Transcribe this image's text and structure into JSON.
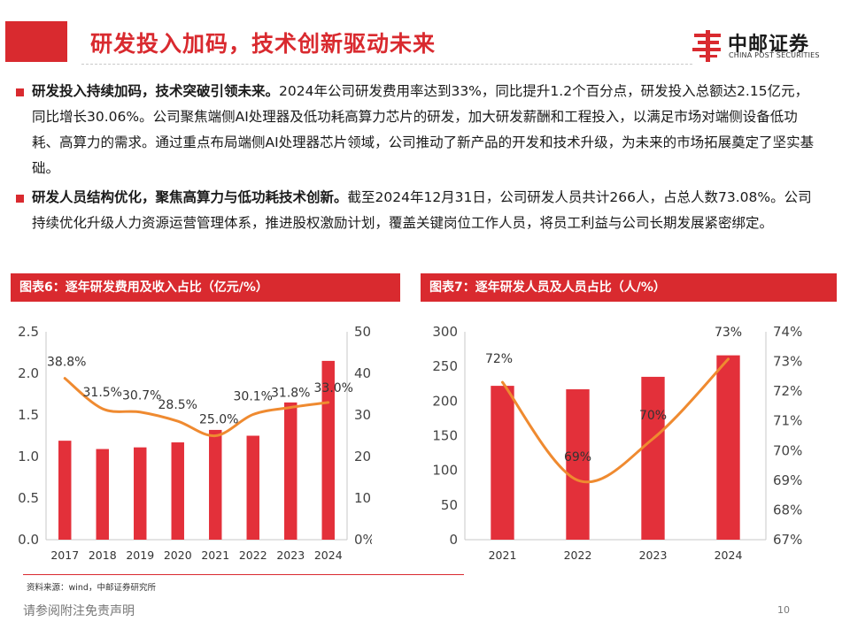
{
  "header": {
    "title": "研发投入加码，技术创新驱动未来",
    "brand_name": "中邮证券",
    "brand_en": "CHINA POST SECURITIES",
    "accent_color": "#d92a2f"
  },
  "bullets": [
    {
      "bold": "研发投入持续加码，技术突破引领未来。",
      "text": "2024年公司研发费用率达到33%，同比提升1.2个百分点，研发投入总额达2.15亿元，同比增长30.06%。公司聚焦端侧AI处理器及低功耗高算力芯片的研发，加大研发薪酬和工程投入，以满足市场对端侧设备低功耗、高算力的需求。通过重点布局端侧AI处理器芯片领域，公司推动了新产品的开发和技术升级，为未来的市场拓展奠定了坚实基础。"
    },
    {
      "bold": "研发人员结构优化，聚焦高算力与低功耗技术创新。",
      "text": "截至2024年12月31日，公司研发人员共计266人，占总人数73.08%。公司持续优化升级人力资源运营管理体系，推进股权激励计划，覆盖关键岗位工作人员，将员工利益与公司长期发展紧密绑定。"
    }
  ],
  "chart_data": [
    {
      "panel_title": "图表6：逐年研发费用及收入占比（亿元/%）",
      "type": "bar",
      "categories": [
        "2017",
        "2018",
        "2019",
        "2020",
        "2021",
        "2022",
        "2023",
        "2024"
      ],
      "series": [
        {
          "type": "bar",
          "axis": "left",
          "values": [
            1.19,
            1.09,
            1.11,
            1.17,
            1.32,
            1.25,
            1.65,
            2.15
          ],
          "color": "#e3303a"
        },
        {
          "type": "line",
          "axis": "right",
          "values": [
            38.8,
            31.5,
            30.7,
            28.5,
            25.0,
            30.1,
            31.8,
            33.0
          ],
          "labels": [
            "38.8%",
            "31.5%",
            "30.7%",
            "28.5%",
            "25.0%",
            "30.1%",
            "31.8%",
            "33.0%"
          ],
          "color": "#ef8a30"
        }
      ],
      "ylim_left": [
        0,
        2.5
      ],
      "yticks_left": [
        "0.0",
        "0.5",
        "1.0",
        "1.5",
        "2.0",
        "2.5"
      ],
      "ylim_right": [
        0,
        50
      ],
      "yticks_right": [
        "0%",
        "10%",
        "20%",
        "30%",
        "40%",
        "50%"
      ],
      "grid": false,
      "legend": "none"
    },
    {
      "panel_title": "图表7：逐年研发人员及人员占比（人/%）",
      "type": "bar",
      "categories": [
        "2021",
        "2022",
        "2023",
        "2024"
      ],
      "series": [
        {
          "type": "bar",
          "axis": "left",
          "values": [
            222,
            217,
            235,
            266
          ],
          "color": "#e3303a"
        },
        {
          "type": "line",
          "axis": "right",
          "values": [
            72.3,
            69.0,
            70.4,
            73.08
          ],
          "labels": [
            "72%",
            "69%",
            "70%",
            "73%"
          ],
          "color": "#ef8a30"
        }
      ],
      "ylim_left": [
        0,
        300
      ],
      "yticks_left": [
        "0",
        "50",
        "100",
        "150",
        "200",
        "250",
        "300"
      ],
      "ylim_right": [
        67,
        74
      ],
      "yticks_right": [
        "67%",
        "68%",
        "69%",
        "70%",
        "71%",
        "72%",
        "73%",
        "74%"
      ],
      "grid": false,
      "legend": "none"
    }
  ],
  "footer": {
    "source": "资料来源：wind，中邮证券研究所",
    "disclaimer": "请参阅附注免责声明",
    "page_number": "10"
  }
}
